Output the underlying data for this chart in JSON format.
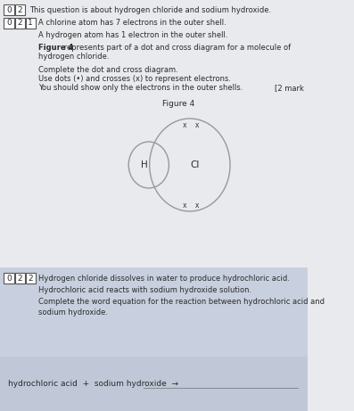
{
  "page_bg": "#e8eaed",
  "white_area_bg": "#ebebed",
  "title_text1": "This question is about hydrogen chloride and sodium hydroxide.",
  "line1": "A chlorine atom has 7 electrons in the outer shell.",
  "line2": "A hydrogen atom has 1 electron in the outer shell.",
  "line3_bold": "Figure 4",
  "line3_rest": " represents part of a dot and cross diagram for a molecule of",
  "line3_rest2": "hydrogen chloride.",
  "line4": "Complete the dot and cross diagram.",
  "line5": "Use dots (•) and crosses (x) to represent electrons.",
  "line6": "You should show only the electrons in the outer shells.",
  "marks": "[2 mark",
  "figure_label": "Figure 4",
  "H_label": "H",
  "Cl_label": "Cl",
  "top_electrons": "x  x",
  "bottom_electrons": "x  x",
  "section2_line1": "Hydrogen chloride dissolves in water to produce hydrochloric acid.",
  "section2_line2": "Hydrochloric acid reacts with sodium hydroxide solution.",
  "section2_line3a": "Complete the word equation for the reaction between hydrochloric acid and",
  "section2_line3b": "sodium hydroxide.",
  "bottom_eq": "hydrochloric acid  +  sodium hydroxide  →",
  "circle_color": "#999999",
  "text_color": "#2a2a2a",
  "box_border": "#555555",
  "section2_bg": "#c8d0df",
  "bottom_bg": "#c0c8d8"
}
